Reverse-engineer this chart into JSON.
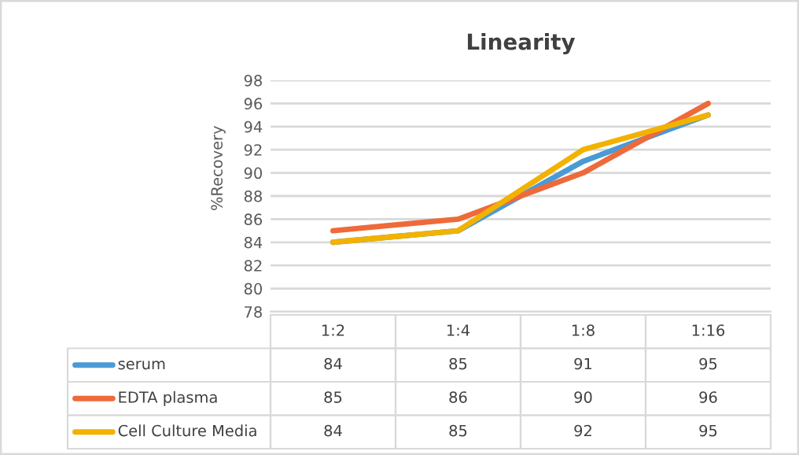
{
  "chart_data": {
    "type": "line",
    "title": "Linearity",
    "ylabel": "%Recovery",
    "categories": [
      "1:2",
      "1:4",
      "1:8",
      "1:16"
    ],
    "series": [
      {
        "name": "serum",
        "color": "#4a9ad6",
        "values": [
          84,
          85,
          91,
          95
        ]
      },
      {
        "name": "EDTA plasma",
        "color": "#ee6a3a",
        "values": [
          85,
          86,
          90,
          96
        ]
      },
      {
        "name": "Cell Culture Media",
        "color": "#f2b200",
        "values": [
          84,
          85,
          92,
          95
        ]
      }
    ],
    "ylim": [
      78,
      98
    ],
    "yticks": [
      78,
      80,
      82,
      84,
      86,
      88,
      90,
      92,
      94,
      96,
      98
    ],
    "grid": "y",
    "legend": "bottom",
    "data_labels": true,
    "marker": "none",
    "line_style": "solid"
  }
}
